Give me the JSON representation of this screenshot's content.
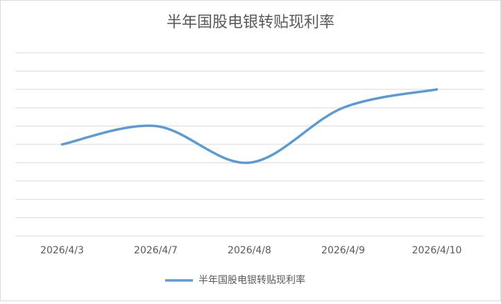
{
  "chart_data": {
    "type": "line",
    "title": "半年国股电银转贴现利率",
    "categories": [
      "2026/4/3",
      "2026/4/7",
      "2026/4/8",
      "2026/4/9",
      "2026/4/10"
    ],
    "series": [
      {
        "name": "半年国股电银转贴现利率",
        "color": "#5b9bd5",
        "values": [
          5,
          6,
          4,
          7,
          8
        ]
      }
    ],
    "ylim": [
      0,
      10
    ],
    "yticks": [
      0,
      1,
      2,
      3,
      4,
      5,
      6,
      7,
      8,
      9,
      10
    ],
    "ytick_labels": false,
    "grid": true,
    "smooth": true,
    "legend": "bottom"
  }
}
